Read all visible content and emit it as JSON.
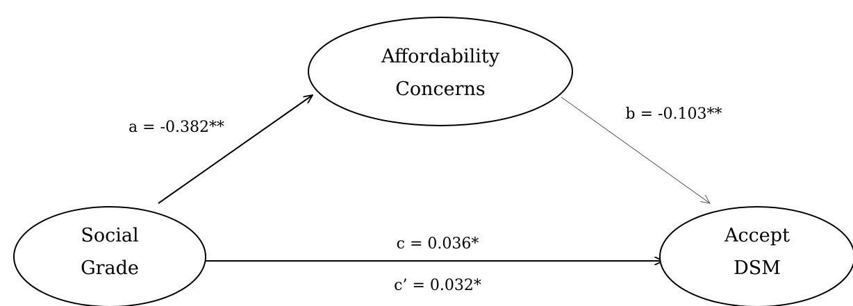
{
  "nodes": [
    {
      "id": "affordability",
      "label": [
        "Affordability",
        "Concerns"
      ]
    },
    {
      "id": "social",
      "label": [
        "Social",
        "Grade"
      ]
    },
    {
      "id": "accept",
      "label": [
        "Accept",
        "DSM"
      ]
    }
  ],
  "edges": [
    {
      "from": "social",
      "to": "affordability",
      "label": "a = -0.382**"
    },
    {
      "from": "affordability",
      "to": "accept",
      "label": "b = -0.103**"
    },
    {
      "from": "social",
      "to": "accept",
      "label": "c = 0.036*",
      "label2": "c’ = 0.032*"
    }
  ]
}
